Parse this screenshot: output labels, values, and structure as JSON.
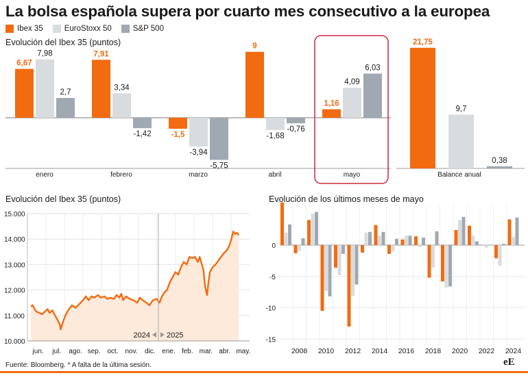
{
  "title": "La bolsa española supera por cuarto mes consecutivo a la europea",
  "colors": {
    "ibex": "#f26b10",
    "euro": "#d9dcdf",
    "sp": "#a0a8b1",
    "highlight": "#c8283c",
    "area": "#fdeadb"
  },
  "legend": [
    {
      "label": "Ibex 35",
      "color": "#f26b10"
    },
    {
      "label": "EuroStoxx 50",
      "color": "#d9dcdf"
    },
    {
      "label": "S&P 500",
      "color": "#a0a8b1"
    }
  ],
  "source": "Fuente: Bloomberg. * A falta de la última sesión.",
  "logo": "eE",
  "chart_data": [
    {
      "type": "bar",
      "title": "Evolución del Ibex 35 (puntos)",
      "categories": [
        "enero",
        "febrero",
        "marzo",
        "abril",
        "mayo"
      ],
      "series": [
        {
          "name": "Ibex 35",
          "values": [
            6.67,
            7.91,
            -1.5,
            9,
            1.16
          ],
          "labels": [
            "6,67",
            "7,91",
            "-1,5",
            "9",
            "1,16"
          ]
        },
        {
          "name": "EuroStoxx 50",
          "values": [
            7.98,
            3.34,
            -3.94,
            -1.68,
            4.09
          ],
          "labels": [
            "7,98",
            "3,34",
            "-3,94",
            "-1,68",
            "4,09"
          ]
        },
        {
          "name": "S&P 500",
          "values": [
            2.7,
            -1.42,
            -5.75,
            -0.76,
            6.03
          ],
          "labels": [
            "2,7",
            "-1,42",
            "-5,75",
            "-0,76",
            "6,03"
          ]
        }
      ],
      "highlight": "mayo"
    },
    {
      "type": "bar",
      "categories": [
        "Balance anual"
      ],
      "series": [
        {
          "name": "Ibex 35",
          "values": [
            21.75
          ],
          "labels": [
            "21,75"
          ]
        },
        {
          "name": "EuroStoxx 50",
          "values": [
            9.7
          ],
          "labels": [
            "9,7"
          ]
        },
        {
          "name": "S&P 500",
          "values": [
            0.38
          ],
          "labels": [
            "0,38"
          ]
        }
      ]
    },
    {
      "type": "area",
      "title": "Evolución del Ibex 35 (puntos)",
      "ylim": [
        10000,
        15000
      ],
      "yticks": [
        10000,
        11000,
        12000,
        13000,
        14000,
        15000
      ],
      "ytick_labels": [
        "10.000",
        "11.000",
        "12.000",
        "13.000",
        "14.000",
        "15.000"
      ],
      "xtick_labels": [
        "jun.",
        "jul.",
        "ago.",
        "sep.",
        "oct.",
        "nov.",
        "dic.",
        "ene.",
        "feb.",
        "mar.",
        "abr.",
        "may."
      ],
      "year_labels": [
        "2024",
        "2025"
      ],
      "points": [
        [
          0,
          11350
        ],
        [
          0.1,
          11400
        ],
        [
          0.2,
          11250
        ],
        [
          0.3,
          11150
        ],
        [
          0.45,
          11100
        ],
        [
          0.6,
          11050
        ],
        [
          0.75,
          11150
        ],
        [
          0.9,
          11250
        ],
        [
          1.0,
          11100
        ],
        [
          1.15,
          11200
        ],
        [
          1.3,
          11000
        ],
        [
          1.45,
          10800
        ],
        [
          1.55,
          10650
        ],
        [
          1.6,
          10450
        ],
        [
          1.7,
          10700
        ],
        [
          1.85,
          11000
        ],
        [
          2.0,
          11200
        ],
        [
          2.2,
          11400
        ],
        [
          2.4,
          11300
        ],
        [
          2.6,
          11450
        ],
        [
          2.8,
          11600
        ],
        [
          2.95,
          11750
        ],
        [
          3.1,
          11600
        ],
        [
          3.25,
          11750
        ],
        [
          3.4,
          11700
        ],
        [
          3.6,
          11800
        ],
        [
          3.75,
          11700
        ],
        [
          3.95,
          11750
        ],
        [
          4.1,
          11650
        ],
        [
          4.25,
          11700
        ],
        [
          4.45,
          11650
        ],
        [
          4.6,
          11800
        ],
        [
          4.75,
          11700
        ],
        [
          4.85,
          11850
        ],
        [
          4.95,
          11600
        ],
        [
          5.1,
          11750
        ],
        [
          5.3,
          11650
        ],
        [
          5.5,
          11600
        ],
        [
          5.7,
          11500
        ],
        [
          5.85,
          11700
        ],
        [
          6.0,
          11600
        ],
        [
          6.2,
          11500
        ],
        [
          6.35,
          11400
        ],
        [
          6.55,
          11600
        ],
        [
          6.75,
          11650
        ],
        [
          6.9,
          11500
        ],
        [
          7.0,
          11700
        ],
        [
          7.15,
          11900
        ],
        [
          7.3,
          12000
        ],
        [
          7.45,
          12300
        ],
        [
          7.6,
          12500
        ],
        [
          7.75,
          12700
        ],
        [
          7.9,
          12600
        ],
        [
          8.05,
          12900
        ],
        [
          8.2,
          13100
        ],
        [
          8.35,
          13000
        ],
        [
          8.5,
          13300
        ],
        [
          8.65,
          13250
        ],
        [
          8.8,
          13300
        ],
        [
          8.95,
          13100
        ],
        [
          9.05,
          13300
        ],
        [
          9.15,
          13050
        ],
        [
          9.25,
          12800
        ],
        [
          9.35,
          12100
        ],
        [
          9.45,
          11800
        ],
        [
          9.52,
          12300
        ],
        [
          9.6,
          12700
        ],
        [
          9.75,
          12900
        ],
        [
          9.9,
          13000
        ],
        [
          10.05,
          13150
        ],
        [
          10.2,
          13300
        ],
        [
          10.35,
          13450
        ],
        [
          10.5,
          13550
        ],
        [
          10.65,
          13750
        ],
        [
          10.75,
          14000
        ],
        [
          10.85,
          14300
        ],
        [
          10.95,
          14200
        ],
        [
          11.05,
          14250
        ],
        [
          11.15,
          14150
        ]
      ]
    },
    {
      "type": "bar",
      "title": "Evolución de los últimos meses de mayo",
      "x": [
        2007,
        2008,
        2009,
        2010,
        2011,
        2012,
        2013,
        2014,
        2015,
        2016,
        2017,
        2018,
        2019,
        2020,
        2021,
        2022,
        2023,
        2024
      ],
      "xtick_labels": [
        "2008",
        "2010",
        "2012",
        "2014",
        "2016",
        "2018",
        "2020",
        "2022",
        "2024"
      ],
      "ylim": [
        -15,
        7
      ],
      "yticks": [
        0,
        -5,
        -10,
        -15
      ],
      "ytick_labels": [
        "0",
        "-5",
        "-10",
        "-15"
      ],
      "series": [
        {
          "name": "Ibex 35",
          "values": [
            6.8,
            -1.3,
            4.0,
            -10.5,
            -3.6,
            -13.0,
            -1.2,
            3.2,
            -1.4,
            0.9,
            1.4,
            -5.2,
            -5.8,
            2.4,
            3.1,
            0.0,
            -2.1,
            4.1
          ]
        },
        {
          "name": "EuroStoxx 50",
          "values": [
            2.0,
            -0.9,
            5.0,
            -7.3,
            -4.8,
            -8.1,
            2.0,
            1.5,
            -1.0,
            1.5,
            -0.3,
            -3.6,
            -6.8,
            4.0,
            1.5,
            -0.4,
            -3.3,
            1.3
          ]
        },
        {
          "name": "S&P 500",
          "values": [
            3.3,
            1.1,
            5.3,
            -8.2,
            -1.4,
            -6.3,
            2.1,
            2.1,
            1.0,
            1.5,
            1.2,
            2.2,
            -6.6,
            4.5,
            0.6,
            0.0,
            0.2,
            4.4
          ]
        }
      ]
    }
  ]
}
